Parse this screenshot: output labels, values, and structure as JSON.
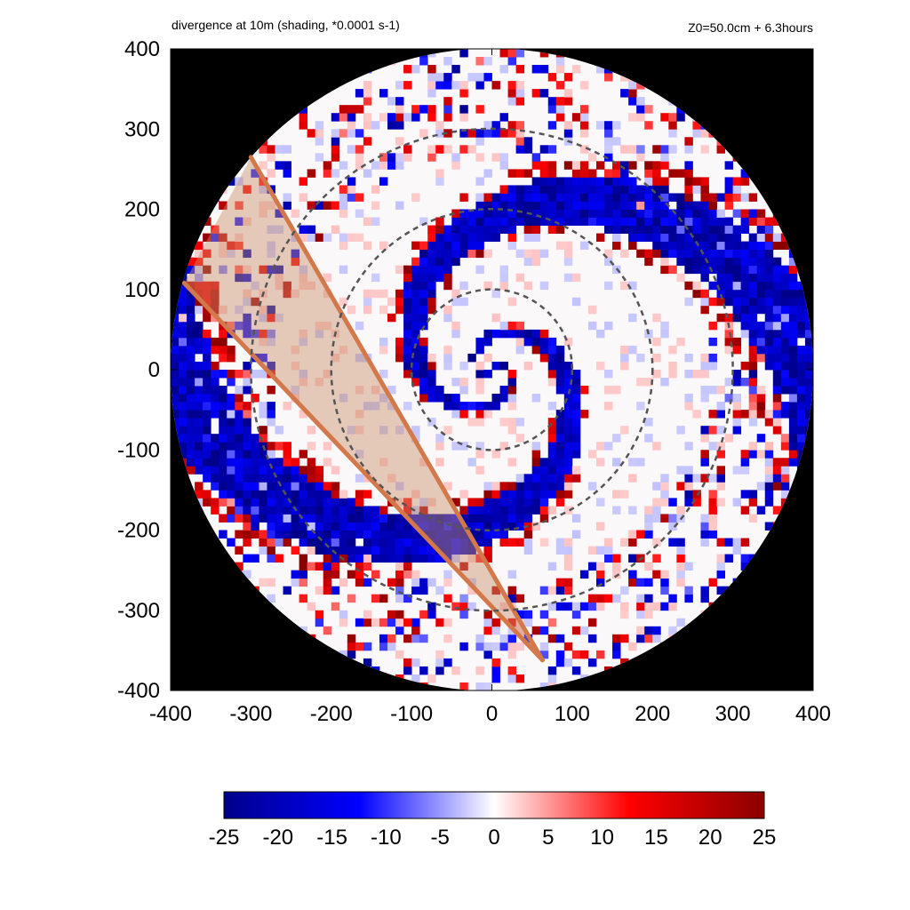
{
  "chart_data": {
    "type": "heatmap",
    "title": "divergence at 10m (shading, *0.0001 s-1)",
    "subtitle": "Z0=50.0cm  + 6.3hours",
    "xlabel": "",
    "ylabel": "",
    "xlim": [
      -400,
      400
    ],
    "ylim": [
      -400,
      400
    ],
    "x_ticks": [
      "-400",
      "-300",
      "-200",
      "-100",
      "0",
      "100",
      "200",
      "300",
      "400"
    ],
    "y_ticks": [
      "400",
      "300",
      "200",
      "100",
      "0",
      "-100",
      "-200",
      "-300",
      "-400"
    ],
    "domain_radius": 400,
    "outside_domain_color": "#000000",
    "reference_circles": {
      "radii": [
        100,
        200,
        300
      ],
      "style": "dashed",
      "color": "#555555"
    },
    "colorbar": {
      "min": -25,
      "max": 25,
      "tick_labels": [
        "-25",
        "-20",
        "-15",
        "-10",
        "-5",
        "0",
        "5",
        "10",
        "15",
        "20",
        "25"
      ],
      "colormap": [
        "#00008b",
        "#0000ff",
        "#ffffff",
        "#ff0000",
        "#8b0000"
      ]
    },
    "features": {
      "spiral_convergence_bands": "negative (blue) spiral bands wrapping around the centre",
      "divergence_cells": "positive (red) cells along the outer rainbands"
    },
    "overlay": {
      "description": "shaded wedge bounded by two lines",
      "fill_color": "#c8906a",
      "line_color": "#d2784a",
      "line_a": [
        [
          -300,
          265
        ],
        [
          63,
          -362
        ]
      ],
      "line_b": [
        [
          -383,
          108
        ],
        [
          63,
          -362
        ]
      ]
    }
  }
}
